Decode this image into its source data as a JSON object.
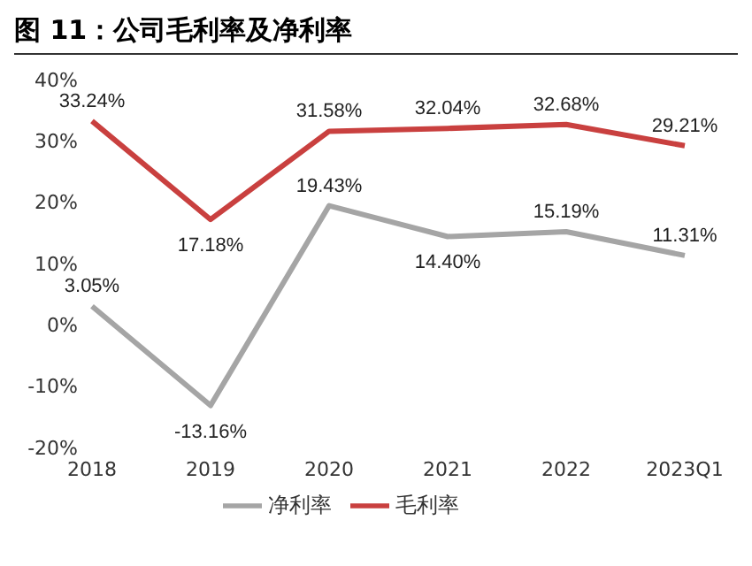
{
  "chart_data": {
    "type": "line",
    "title": "图 11：公司毛利率及净利率",
    "categories": [
      "2018",
      "2019",
      "2020",
      "2021",
      "2022",
      "2023Q1"
    ],
    "series": [
      {
        "name": "毛利率",
        "color": "#c9403f",
        "values": [
          33.24,
          17.18,
          31.58,
          32.04,
          32.68,
          29.21
        ],
        "value_labels": [
          "33.24%",
          "17.18%",
          "31.58%",
          "32.04%",
          "32.68%",
          "29.21%"
        ]
      },
      {
        "name": "净利率",
        "color": "#a5a5a5",
        "values": [
          3.05,
          -13.16,
          19.43,
          14.4,
          15.19,
          11.31
        ],
        "value_labels": [
          "3.05%",
          "-13.16%",
          "19.43%",
          "14.40%",
          "15.19%",
          "11.31%"
        ]
      }
    ],
    "ylim": [
      -20,
      40
    ],
    "yticks": [
      {
        "value": -20,
        "label": "-20%"
      },
      {
        "value": -10,
        "label": "-10%"
      },
      {
        "value": 0,
        "label": "0%"
      },
      {
        "value": 10,
        "label": "10%"
      },
      {
        "value": 20,
        "label": "20%"
      },
      {
        "value": 30,
        "label": "30%"
      },
      {
        "value": 40,
        "label": "40%"
      }
    ],
    "grid": false,
    "legend": "bottom",
    "marker": "none",
    "line_style": "solid"
  }
}
